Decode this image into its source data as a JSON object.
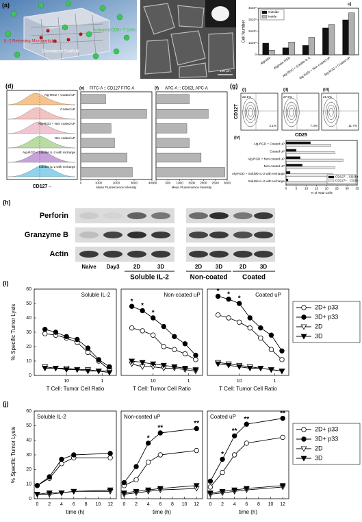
{
  "figure": {
    "panel_a": {
      "label": "(a)",
      "cells": "Activated CD8+ T Cells",
      "particles": "IL-2 Releasing Microparticles",
      "scaffold": "Biomaterial Scaffold"
    },
    "panel_b": {
      "scale_bar": "100 µm"
    },
    "panel_d": {
      "label": "(d)",
      "labels": [
        "Alg-RGD + Coated uP",
        "Coated uP",
        "Alg-RGD + Non coated uP",
        "Non coated uP",
        "Alg-RGD + Soluble IL-2 with recharge",
        "Soluble IL-2 with recharge"
      ],
      "x_label": "CD127→"
    },
    "panel_g": {
      "label": "(g)",
      "y_label": "CD127",
      "x_label": "CD25",
      "plots": [
        {
          "label": "(i)",
          "upper_left": "22.1%",
          "lower_right": "2.1%"
        },
        {
          "label": "(ii)",
          "upper_left": "27.5%",
          "lower_right": "7.4%"
        },
        {
          "label": "(iii)",
          "upper_left": "21.5%",
          "lower_right": "11.7%"
        }
      ]
    },
    "panel_h": {
      "label": "(h)",
      "rows": [
        "Perforin",
        "Granzyme B",
        "Actin"
      ],
      "lanes": [
        "Naive",
        "Day3",
        "2D",
        "3D",
        "2D",
        "3D",
        "2D",
        "3D"
      ],
      "groups": [
        "Soluble IL-2",
        "Non-coated",
        "Coated"
      ]
    },
    "panel_i": {
      "label": "(i)"
    },
    "panel_j": {
      "label": "(j)"
    }
  },
  "chart_data": [
    {
      "type": "bar",
      "panel": "c)",
      "y_label": "Cell Number",
      "categories": [
        "Alginate",
        "Alginate-RGD",
        "Alg-RGD + Soluble IL-2",
        "Alg-RGD + Non-coated uP",
        "Alg-RGD + Coated uP"
      ],
      "series": [
        {
          "name": "Outside",
          "color": "#111111",
          "values": [
            1000000,
            600000,
            800000,
            2300000,
            3000000
          ]
        },
        {
          "name": "Inside",
          "color": "#b0b0b0",
          "values": [
            400000,
            1100000,
            1500000,
            2600000,
            3600000
          ]
        }
      ],
      "ylim": [
        0,
        4000000
      ],
      "yticks": [
        0,
        {
          "value": 1000000,
          "label": "1x10⁶"
        },
        {
          "value": 2000000,
          "label": "2x10⁶"
        },
        {
          "value": 3000000,
          "label": "3x10⁶"
        },
        {
          "value": 4000000,
          "label": "4x10⁶"
        }
      ],
      "legend": "upper left"
    },
    {
      "type": "barh",
      "panel": "(e)",
      "title": "FITC-A :: CD127 FITC-A",
      "x_label": "Mean Fluorescence Intensity",
      "values": [
        1400,
        3700,
        1700,
        1900,
        2600,
        2900
      ],
      "color": "#b5b5b5",
      "xlim": [
        0,
        4000
      ],
      "xticks": [
        0,
        1000,
        2000,
        3000,
        4000
      ]
    },
    {
      "type": "barh",
      "panel": "(f)",
      "title": "APC-A :: CD62L APC-A",
      "x_label": "Mean Fluorescence Intensity",
      "values": [
        1400,
        2200,
        1300,
        1400,
        1900,
        2900
      ],
      "color": "#b5b5b5",
      "xlim": [
        0,
        3000
      ],
      "xticks": [
        0,
        500,
        1000,
        1500,
        2000,
        2500,
        3000
      ]
    },
    {
      "type": "barh",
      "panel": "(iv)",
      "x_label": "% of Total Cells",
      "categories": [
        "Alg-RGD + Coated uP",
        "Coated uP",
        "Alg-RGD + Non coated uP",
        "Non coated uP",
        "Alg-RGD + Soluble IL-2 with recharge",
        "Soluble IL-2 with recharge"
      ],
      "series": [
        {
          "name": "CD127- , CD25+",
          "color": "#111111",
          "values": [
            12,
            5,
            7,
            8,
            2,
            1
          ]
        },
        {
          "name": "CD127+ , CD25-",
          "color": "#e6e6e6",
          "values": [
            22,
            24,
            28,
            24,
            23,
            24
          ]
        }
      ],
      "xlim": [
        0,
        35
      ],
      "xticks": [
        0,
        5,
        10,
        15,
        20,
        25,
        30,
        35
      ],
      "legend": "lower right"
    },
    {
      "type": "line",
      "title": "Soluble IL-2",
      "title_corner": "upper right",
      "y_label": "% Specific Tumor Lysis",
      "x_label": "T Cell: Tumor Cell Ratio",
      "x": [
        40,
        20,
        10,
        5,
        2.5,
        1.25,
        0.625
      ],
      "xscale": "log",
      "xlim": [
        80,
        0.4
      ],
      "xticks": [
        10,
        1
      ],
      "ylim": [
        0,
        60
      ],
      "yticks": [
        0,
        10,
        20,
        30,
        40,
        50,
        60
      ],
      "series": [
        {
          "color": "#000000",
          "marker": "circle-open",
          "values": [
            29,
            28,
            26,
            23,
            16,
            10,
            4
          ]
        },
        {
          "color": "#000000",
          "marker": "circle",
          "values": [
            32,
            30,
            27,
            25,
            19,
            11,
            6
          ]
        },
        {
          "color": "#000000",
          "marker": "triangle-down-open",
          "values": [
            6,
            5,
            5,
            4,
            4,
            3,
            3
          ]
        },
        {
          "color": "#000000",
          "marker": "triangle-down",
          "values": [
            5,
            5,
            4,
            4,
            3,
            3,
            2
          ]
        }
      ]
    },
    {
      "type": "line",
      "title": "Non-coated uP",
      "title_corner": "upper right",
      "x_label": "T Cell: Tumor Cell Ratio",
      "x": [
        40,
        20,
        10,
        5,
        2.5,
        1.25,
        0.625
      ],
      "xscale": "log",
      "xlim": [
        80,
        0.4
      ],
      "xticks": [
        10,
        1
      ],
      "ylim": [
        0,
        60
      ],
      "series": [
        {
          "color": "#000000",
          "marker": "circle-open",
          "values": [
            33,
            31,
            28,
            20,
            18,
            15,
            11
          ]
        },
        {
          "color": "#000000",
          "marker": "circle",
          "values": [
            48,
            45,
            40,
            34,
            27,
            22,
            14
          ]
        },
        {
          "color": "#000000",
          "marker": "triangle-down-open",
          "values": [
            8,
            6,
            6,
            5,
            5,
            4,
            3
          ]
        },
        {
          "color": "#000000",
          "marker": "triangle-down",
          "values": [
            10,
            9,
            8,
            7,
            6,
            5,
            4
          ]
        }
      ],
      "annotations": [
        {
          "text": "*",
          "x": 40,
          "y": 48
        },
        {
          "text": "*",
          "x": 20,
          "y": 45
        },
        {
          "text": "*",
          "x": 10,
          "y": 40
        }
      ]
    },
    {
      "type": "line",
      "title": "Coated uP",
      "title_corner": "upper right",
      "x_label": "T Cell: Tumor Cell Ratio",
      "x": [
        40,
        20,
        10,
        5,
        2.5,
        1.25,
        0.625
      ],
      "xscale": "log",
      "xlim": [
        80,
        0.4
      ],
      "xticks": [
        10,
        1
      ],
      "ylim": [
        0,
        60
      ],
      "series": [
        {
          "name": "2D+ p33",
          "color": "#000000",
          "marker": "circle-open",
          "values": [
            42,
            40,
            37,
            33,
            26,
            18,
            11
          ]
        },
        {
          "name": "3D+ p33",
          "color": "#000000",
          "marker": "circle",
          "values": [
            55,
            53,
            50,
            40,
            33,
            28,
            17
          ]
        },
        {
          "name": "2D",
          "color": "#000000",
          "marker": "triangle-down-open",
          "values": [
            9,
            8,
            7,
            6,
            5,
            4,
            3
          ]
        },
        {
          "name": "3D",
          "color": "#000000",
          "marker": "triangle-down",
          "values": [
            8,
            7,
            6,
            5,
            5,
            4,
            3
          ]
        }
      ],
      "annotations": [
        {
          "text": "*",
          "x": 40,
          "y": 55
        },
        {
          "text": "*",
          "x": 20,
          "y": 53
        },
        {
          "text": "*",
          "x": 10,
          "y": 50
        }
      ],
      "legend": "right"
    },
    {
      "type": "line",
      "title": "Soluble IL-2",
      "title_corner": "upper left",
      "y_label": "% Specific Tumor Lysis",
      "x_label": "time (h)",
      "x": [
        0,
        2,
        4,
        6,
        12
      ],
      "xlim": [
        -0.5,
        13
      ],
      "xticks": [
        0,
        2,
        4,
        6,
        8,
        10,
        12
      ],
      "ylim": [
        0,
        60
      ],
      "yticks": [
        0,
        10,
        20,
        30,
        40,
        50,
        60
      ],
      "series": [
        {
          "color": "#000000",
          "marker": "circle-open",
          "values": [
            9,
            14,
            24,
            28,
            28
          ]
        },
        {
          "color": "#000000",
          "marker": "circle",
          "values": [
            9,
            15,
            27,
            30,
            31
          ]
        },
        {
          "color": "#000000",
          "marker": "triangle-down-open",
          "values": [
            3,
            3,
            4,
            5,
            5
          ]
        },
        {
          "color": "#000000",
          "marker": "triangle-down",
          "values": [
            3,
            4,
            4,
            5,
            6
          ]
        }
      ]
    },
    {
      "type": "line",
      "title": "Non-coated uP",
      "title_corner": "upper left",
      "x_label": "time (h)",
      "x": [
        0,
        2,
        4,
        6,
        12
      ],
      "xlim": [
        -0.5,
        13
      ],
      "xticks": [
        0,
        2,
        4,
        6,
        8,
        10,
        12
      ],
      "ylim": [
        0,
        60
      ],
      "series": [
        {
          "color": "#000000",
          "marker": "circle-open",
          "values": [
            9,
            13,
            25,
            30,
            33
          ]
        },
        {
          "color": "#000000",
          "marker": "circle",
          "values": [
            11,
            22,
            38,
            45,
            48
          ]
        },
        {
          "color": "#000000",
          "marker": "triangle-down-open",
          "values": [
            3,
            4,
            5,
            6,
            7
          ]
        },
        {
          "color": "#000000",
          "marker": "triangle-down",
          "values": [
            4,
            5,
            6,
            7,
            9
          ]
        }
      ],
      "annotations": [
        {
          "text": "*",
          "x": 4,
          "y": 38
        },
        {
          "text": "**",
          "x": 6,
          "y": 45
        },
        {
          "text": "**",
          "x": 12,
          "y": 48
        }
      ]
    },
    {
      "type": "line",
      "title": "Coated uP",
      "title_corner": "upper left",
      "x_label": "time (h)",
      "x": [
        0,
        2,
        4,
        6,
        12
      ],
      "xlim": [
        -0.5,
        13
      ],
      "xticks": [
        0,
        2,
        4,
        6,
        8,
        10,
        12
      ],
      "ylim": [
        0,
        60
      ],
      "series": [
        {
          "name": "2D+ p33",
          "color": "#000000",
          "marker": "circle-open",
          "values": [
            8,
            18,
            30,
            38,
            42
          ]
        },
        {
          "name": "3D+ p33",
          "color": "#000000",
          "marker": "circle",
          "values": [
            12,
            27,
            43,
            51,
            55
          ]
        },
        {
          "name": "2D",
          "color": "#000000",
          "marker": "triangle-down-open",
          "values": [
            3,
            4,
            5,
            6,
            8
          ]
        },
        {
          "name": "3D",
          "color": "#000000",
          "marker": "triangle-down",
          "values": [
            4,
            5,
            6,
            7,
            9
          ]
        }
      ],
      "annotations": [
        {
          "text": "*",
          "x": 2,
          "y": 27
        },
        {
          "text": "**",
          "x": 4,
          "y": 43
        },
        {
          "text": "**",
          "x": 6,
          "y": 51
        },
        {
          "text": "**",
          "x": 12,
          "y": 55
        }
      ],
      "legend": "right"
    }
  ]
}
